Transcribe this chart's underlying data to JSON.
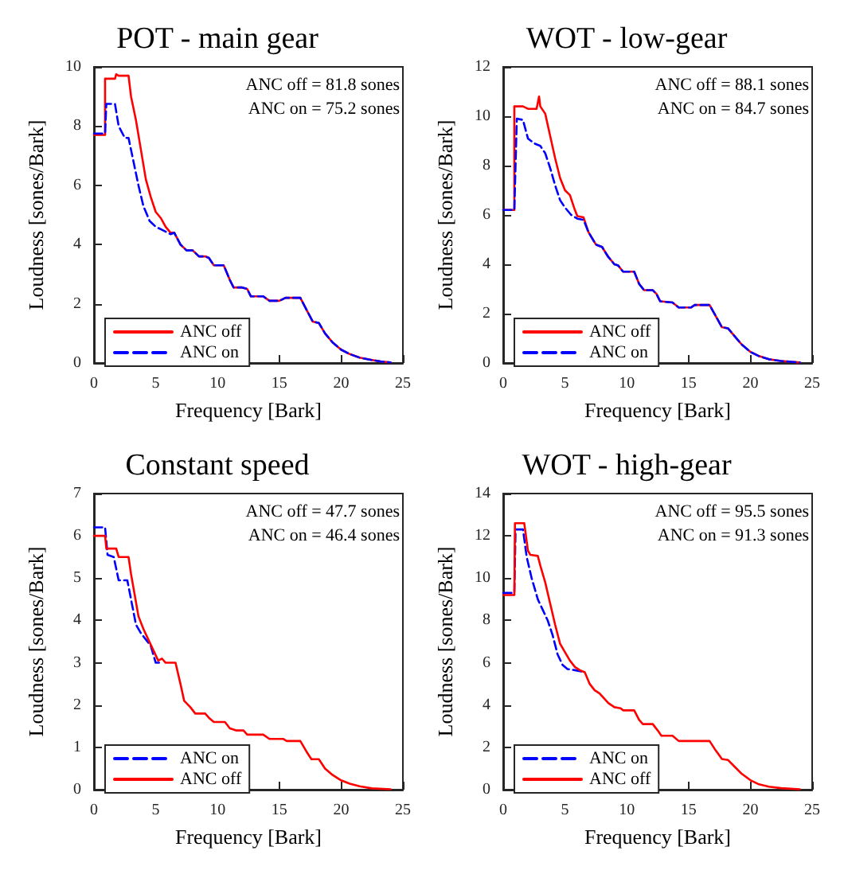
{
  "chart_data": [
    {
      "type": "line",
      "title": "POT - main gear",
      "xlabel": "Frequency [Bark]",
      "ylabel": "Loudness [sones/Bark]",
      "xlim": [
        0,
        25
      ],
      "xticks": [
        0,
        5,
        10,
        15,
        20,
        25
      ],
      "ylim": [
        0,
        10
      ],
      "yticks": [
        0,
        2,
        4,
        6,
        8,
        10
      ],
      "grid": false,
      "legend": "bottom left",
      "marker": "none",
      "annotations": [
        "ANC off = 81.8 sones",
        "ANC on = 75.2 sones"
      ],
      "series": [
        {
          "name": "ANC off",
          "color": "#ff0000",
          "line_style": "solid",
          "x": [
            0,
            0.9,
            0.9,
            1.7,
            1.8,
            2.0,
            2.8,
            3.0,
            3.4,
            3.8,
            4.2,
            4.6,
            5.0,
            5.4,
            5.8,
            6.2,
            6.5,
            7,
            7.5,
            8,
            8.5,
            9,
            9.3,
            9.7,
            10.5,
            11,
            11.3,
            12,
            12.4,
            12.7,
            13.7,
            14.2,
            15,
            15.5,
            16.7,
            17.2,
            17.7,
            18.2,
            18.7,
            19.3,
            20,
            20.7,
            21.5,
            22.5,
            23.2,
            24
          ],
          "values": [
            7.7,
            7.7,
            9.6,
            9.6,
            9.75,
            9.7,
            9.7,
            9.0,
            8.2,
            7.2,
            6.2,
            5.6,
            5.1,
            4.9,
            4.6,
            4.4,
            4.4,
            4.0,
            3.8,
            3.8,
            3.6,
            3.6,
            3.55,
            3.3,
            3.3,
            2.8,
            2.55,
            2.55,
            2.5,
            2.25,
            2.25,
            2.1,
            2.1,
            2.2,
            2.2,
            1.8,
            1.4,
            1.35,
            1.0,
            0.7,
            0.45,
            0.3,
            0.18,
            0.1,
            0.05,
            0.02
          ]
        },
        {
          "name": "ANC on",
          "color": "#0000ff",
          "line_style": "dashed",
          "x": [
            0,
            0.9,
            1.0,
            1.7,
            2.0,
            2.5,
            2.8,
            3.2,
            3.6,
            4.0,
            4.5,
            5.0,
            5.5,
            6.2,
            6.5,
            7,
            7.5,
            8,
            8.5,
            9,
            9.3,
            9.7,
            10.5,
            11,
            11.3,
            12,
            12.4,
            12.7,
            13.7,
            14.2,
            15,
            15.5,
            16.7,
            17.2,
            17.7,
            18.2,
            18.7,
            19.3,
            20,
            20.7,
            21.5,
            22.5,
            23.2,
            24
          ],
          "values": [
            7.75,
            7.75,
            8.75,
            8.75,
            8.0,
            7.6,
            7.6,
            6.8,
            6.0,
            5.3,
            4.8,
            4.6,
            4.5,
            4.35,
            4.4,
            4.0,
            3.8,
            3.8,
            3.6,
            3.6,
            3.55,
            3.3,
            3.3,
            2.8,
            2.55,
            2.55,
            2.5,
            2.25,
            2.25,
            2.1,
            2.1,
            2.2,
            2.2,
            1.8,
            1.4,
            1.35,
            1.0,
            0.7,
            0.45,
            0.3,
            0.18,
            0.1,
            0.05,
            0.02
          ]
        }
      ]
    },
    {
      "type": "line",
      "title": "WOT - low-gear",
      "xlabel": "Frequency [Bark]",
      "ylabel": "Loudness [sones/Bark]",
      "xlim": [
        0,
        25
      ],
      "xticks": [
        0,
        5,
        10,
        15,
        20,
        25
      ],
      "ylim": [
        0,
        12
      ],
      "yticks": [
        0,
        2,
        4,
        6,
        8,
        10,
        12
      ],
      "grid": false,
      "legend": "bottom left",
      "marker": "none",
      "annotations": [
        "ANC off = 88.1 sones",
        "ANC on = 84.7 sones"
      ],
      "series": [
        {
          "name": "ANC off",
          "color": "#ff0000",
          "line_style": "solid",
          "x": [
            0,
            0.9,
            0.9,
            1.6,
            2.0,
            2.7,
            2.9,
            3.0,
            3.4,
            3.8,
            4.2,
            4.6,
            5.0,
            5.4,
            5.8,
            6.0,
            6.5,
            6.9,
            7.5,
            8,
            8.5,
            9,
            9.3,
            9.7,
            10.6,
            11,
            11.4,
            12.1,
            12.4,
            12.7,
            13.7,
            14.2,
            15.2,
            15.5,
            16.7,
            17.2,
            17.7,
            18.2,
            18.7,
            19.3,
            20,
            20.7,
            21.5,
            22.5,
            24
          ],
          "values": [
            6.2,
            6.2,
            10.4,
            10.4,
            10.3,
            10.3,
            10.8,
            10.4,
            10.1,
            9.2,
            8.3,
            7.5,
            7.0,
            6.8,
            6.2,
            5.95,
            5.9,
            5.3,
            4.8,
            4.7,
            4.3,
            4.0,
            3.95,
            3.7,
            3.7,
            3.2,
            2.95,
            2.95,
            2.8,
            2.5,
            2.45,
            2.25,
            2.25,
            2.35,
            2.35,
            1.9,
            1.45,
            1.4,
            1.1,
            0.75,
            0.45,
            0.28,
            0.15,
            0.08,
            0.02
          ]
        },
        {
          "name": "ANC on",
          "color": "#0000ff",
          "line_style": "dashed",
          "x": [
            0,
            0.9,
            1.1,
            1.6,
            2.0,
            2.5,
            3.0,
            3.4,
            3.8,
            4.2,
            4.6,
            5.0,
            5.5,
            6.0,
            6.5,
            6.9,
            7.5,
            8,
            8.5,
            9,
            9.3,
            9.7,
            10.6,
            11,
            11.4,
            12.1,
            12.4,
            12.7,
            13.7,
            14.2,
            15.2,
            15.5,
            16.7,
            17.2,
            17.7,
            18.2,
            18.7,
            19.3,
            20,
            20.7,
            21.5,
            22.5,
            24
          ],
          "values": [
            6.2,
            6.2,
            9.9,
            9.85,
            9.1,
            8.9,
            8.8,
            8.5,
            7.9,
            7.2,
            6.6,
            6.3,
            6.0,
            5.85,
            5.8,
            5.3,
            4.8,
            4.7,
            4.3,
            4.0,
            3.95,
            3.7,
            3.7,
            3.2,
            2.95,
            2.95,
            2.8,
            2.5,
            2.45,
            2.25,
            2.25,
            2.35,
            2.35,
            1.9,
            1.45,
            1.4,
            1.1,
            0.75,
            0.45,
            0.28,
            0.15,
            0.08,
            0.02
          ]
        }
      ]
    },
    {
      "type": "line",
      "title": "Constant speed",
      "xlabel": "Frequency [Bark]",
      "ylabel": "Loudness [sones/Bark]",
      "xlim": [
        0,
        25
      ],
      "xticks": [
        0,
        5,
        10,
        15,
        20,
        25
      ],
      "ylim": [
        0,
        7
      ],
      "yticks": [
        0,
        1,
        2,
        3,
        4,
        5,
        6,
        7
      ],
      "grid": false,
      "legend": "bottom left",
      "marker": "none",
      "annotations": [
        "ANC off = 47.7 sones",
        "ANC on = 46.4 sones"
      ],
      "series": [
        {
          "name": "ANC on",
          "color": "#0000ff",
          "line_style": "dashed",
          "x": [
            0,
            0.9,
            1.1,
            1.6,
            2.0,
            2.7,
            3.0,
            3.4,
            3.8,
            4.2,
            4.6,
            5.0,
            5.3
          ],
          "values": [
            6.2,
            6.2,
            5.55,
            5.5,
            4.95,
            4.95,
            4.5,
            3.9,
            3.7,
            3.55,
            3.4,
            3.0,
            3.0
          ]
        },
        {
          "name": "ANC off",
          "color": "#ff0000",
          "line_style": "solid",
          "x": [
            0,
            0.9,
            1.0,
            1.8,
            2.0,
            2.8,
            3.0,
            3.3,
            3.6,
            4.0,
            4.4,
            4.8,
            5.2,
            5.5,
            5.8,
            6.6,
            7.0,
            7.3,
            7.8,
            8.2,
            9.0,
            9.3,
            9.7,
            10.6,
            11,
            11.5,
            12.1,
            12.4,
            13.7,
            14.2,
            15.3,
            15.6,
            16.7,
            17.2,
            17.6,
            18.2,
            18.7,
            19.3,
            20,
            20.7,
            21.5,
            22.5,
            24
          ],
          "values": [
            6.0,
            6.0,
            5.7,
            5.7,
            5.5,
            5.5,
            5.1,
            4.6,
            4.1,
            3.8,
            3.55,
            3.3,
            3.05,
            3.1,
            3.0,
            3.0,
            2.5,
            2.1,
            1.95,
            1.8,
            1.8,
            1.7,
            1.6,
            1.6,
            1.45,
            1.4,
            1.4,
            1.3,
            1.3,
            1.2,
            1.2,
            1.15,
            1.15,
            0.9,
            0.72,
            0.72,
            0.5,
            0.35,
            0.22,
            0.14,
            0.08,
            0.03,
            0.01
          ]
        }
      ]
    },
    {
      "type": "line",
      "title": "WOT - high-gear",
      "xlabel": "Frequency [Bark]",
      "ylabel": "Loudness [sones/Bark]",
      "xlim": [
        0,
        25
      ],
      "xticks": [
        0,
        5,
        10,
        15,
        20,
        25
      ],
      "ylim": [
        0,
        14
      ],
      "yticks": [
        0,
        2,
        4,
        6,
        8,
        10,
        12,
        14
      ],
      "grid": false,
      "legend": "bottom left",
      "marker": "none",
      "annotations": [
        "ANC off = 95.5 sones",
        "ANC on = 91.3 sones"
      ],
      "series": [
        {
          "name": "ANC on",
          "color": "#0000ff",
          "line_style": "dashed",
          "x": [
            0,
            0.9,
            1.0,
            1.6,
            1.9,
            2.3,
            2.8,
            3.2,
            3.6,
            4.0,
            4.4,
            4.8,
            5.2,
            5.8,
            6.6
          ],
          "values": [
            9.3,
            9.3,
            12.3,
            12.3,
            11.0,
            10.0,
            9.0,
            8.5,
            8.0,
            7.3,
            6.4,
            5.9,
            5.7,
            5.65,
            5.55
          ]
        },
        {
          "name": "ANC off",
          "color": "#ff0000",
          "line_style": "solid",
          "x": [
            0,
            0.9,
            0.95,
            1.7,
            2.0,
            2.2,
            2.8,
            3.0,
            3.4,
            3.8,
            4.2,
            4.6,
            5.0,
            5.4,
            5.8,
            6.2,
            6.6,
            7.0,
            7.4,
            7.8,
            8.5,
            9,
            9.5,
            9.7,
            10.6,
            11.0,
            11.3,
            12.1,
            12.5,
            12.8,
            13.7,
            14.2,
            15.3,
            16.7,
            17.2,
            17.7,
            18.2,
            18.7,
            19.3,
            20,
            20.7,
            21.5,
            22.5,
            24
          ],
          "values": [
            9.2,
            9.2,
            12.6,
            12.6,
            11.3,
            11.1,
            11.05,
            10.6,
            9.8,
            8.8,
            7.8,
            6.9,
            6.5,
            6.1,
            5.8,
            5.65,
            5.55,
            5.0,
            4.7,
            4.55,
            4.1,
            3.9,
            3.85,
            3.75,
            3.75,
            3.3,
            3.1,
            3.1,
            2.8,
            2.55,
            2.55,
            2.3,
            2.3,
            2.3,
            1.85,
            1.45,
            1.4,
            1.1,
            0.75,
            0.45,
            0.25,
            0.14,
            0.07,
            0.02
          ]
        }
      ]
    }
  ]
}
